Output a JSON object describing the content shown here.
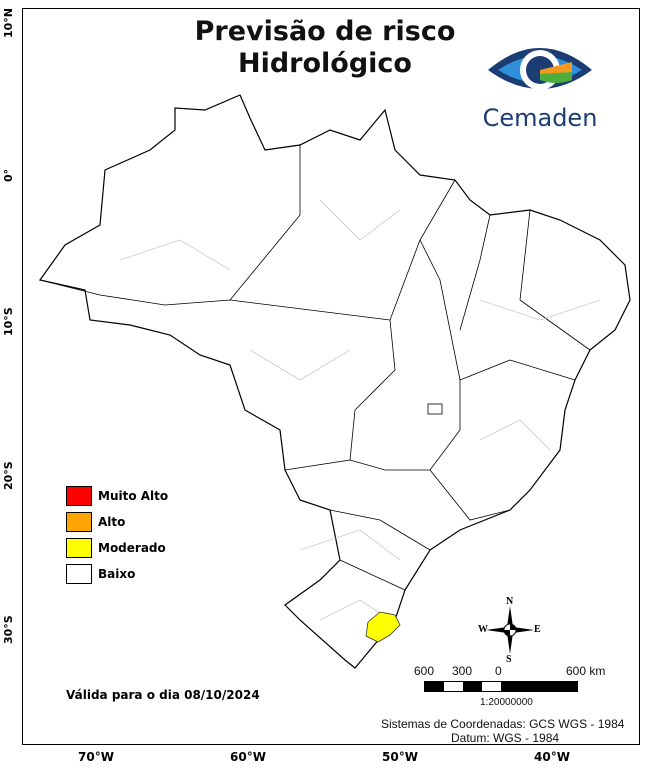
{
  "title_line1": "Previsão de risco",
  "title_line2": "Hidrológico",
  "logo_text": "Cemaden",
  "lat_labels": [
    "10°N",
    "0°",
    "10°S",
    "20°S",
    "30°S"
  ],
  "lon_labels": [
    "70°W",
    "60°W",
    "50°W",
    "40°W"
  ],
  "legend": [
    {
      "label": "Muito Alto",
      "color": "#ff0000"
    },
    {
      "label": "Alto",
      "color": "#ffa500"
    },
    {
      "label": "Moderado",
      "color": "#ffff00"
    },
    {
      "label": "Baixo",
      "color": "#ffffff"
    }
  ],
  "valid_text": "Válida para o dia 08/10/2024",
  "compass": {
    "n": "N",
    "s": "S",
    "e": "E",
    "w": "W"
  },
  "scale": {
    "labels": [
      "600",
      "300",
      "0",
      "600 km"
    ],
    "ratio": "1:20000000"
  },
  "coords_text": "Sistemas de Coordenadas: GCS WGS - 1984",
  "datum_text": "Datum: WGS - 1984"
}
